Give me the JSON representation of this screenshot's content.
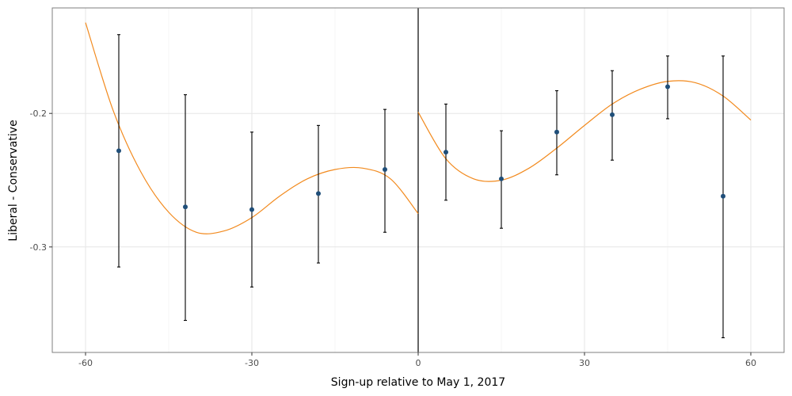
{
  "chart_data": {
    "type": "scatter",
    "title": "",
    "xlabel": "Sign-up relative to May 1, 2017",
    "ylabel": "Liberal - Conservative",
    "xlim": [
      -66,
      66
    ],
    "ylim": [
      -0.379,
      -0.121
    ],
    "x_ticks": [
      -60,
      -30,
      0,
      30,
      60
    ],
    "x_tick_labels": [
      "-60",
      "-30",
      "0",
      "30",
      "60"
    ],
    "y_ticks": [
      -0.2,
      -0.3
    ],
    "y_tick_labels": [
      "-0.2",
      "-0.3"
    ],
    "grid": true,
    "legend": "none",
    "cutoff_x": 0,
    "colors": {
      "points": "#1f4e79",
      "fit": "#f28a1e",
      "errorbars": "#000000",
      "cutoff": "#000000",
      "grid": "#e6e6e6",
      "border": "#7f7f7f"
    },
    "points": [
      {
        "x": -54,
        "y": -0.228,
        "lo": -0.315,
        "hi": -0.141
      },
      {
        "x": -42,
        "y": -0.27,
        "lo": -0.355,
        "hi": -0.186
      },
      {
        "x": -30,
        "y": -0.272,
        "lo": -0.33,
        "hi": -0.214
      },
      {
        "x": -18,
        "y": -0.26,
        "lo": -0.312,
        "hi": -0.209
      },
      {
        "x": -6,
        "y": -0.242,
        "lo": -0.289,
        "hi": -0.197
      },
      {
        "x": 5,
        "y": -0.229,
        "lo": -0.265,
        "hi": -0.193
      },
      {
        "x": 15,
        "y": -0.249,
        "lo": -0.286,
        "hi": -0.213
      },
      {
        "x": 25,
        "y": -0.214,
        "lo": -0.246,
        "hi": -0.183
      },
      {
        "x": 35,
        "y": -0.201,
        "lo": -0.235,
        "hi": -0.168
      },
      {
        "x": 45,
        "y": -0.18,
        "lo": -0.204,
        "hi": -0.157
      },
      {
        "x": 55,
        "y": -0.262,
        "lo": -0.368,
        "hi": -0.157
      }
    ],
    "fit_left": [
      [
        -60,
        -0.132
      ],
      [
        -55,
        -0.198
      ],
      [
        -50,
        -0.244
      ],
      [
        -45,
        -0.274
      ],
      [
        -40,
        -0.289
      ],
      [
        -35,
        -0.288
      ],
      [
        -30,
        -0.278
      ],
      [
        -25,
        -0.262
      ],
      [
        -20,
        -0.249
      ],
      [
        -15,
        -0.242
      ],
      [
        -10,
        -0.241
      ],
      [
        -5,
        -0.249
      ],
      [
        0,
        -0.275
      ]
    ],
    "fit_right": [
      [
        0,
        -0.199
      ],
      [
        5,
        -0.234
      ],
      [
        10,
        -0.249
      ],
      [
        15,
        -0.25
      ],
      [
        20,
        -0.241
      ],
      [
        25,
        -0.226
      ],
      [
        30,
        -0.209
      ],
      [
        35,
        -0.193
      ],
      [
        40,
        -0.182
      ],
      [
        45,
        -0.176
      ],
      [
        50,
        -0.177
      ],
      [
        55,
        -0.187
      ],
      [
        60,
        -0.205
      ]
    ]
  }
}
